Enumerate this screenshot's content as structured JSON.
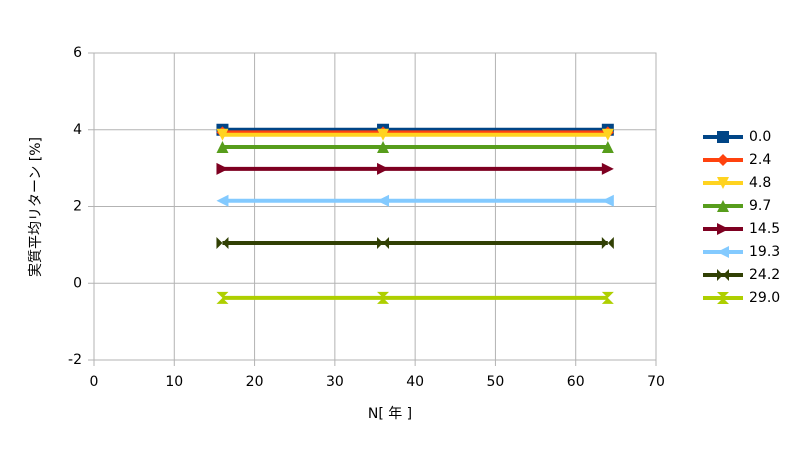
{
  "chart_data": {
    "type": "line",
    "x_label": "N[ 年 ]",
    "y_label": "実質平均リターン [%]",
    "x": [
      16,
      36,
      64
    ],
    "xlim": [
      0,
      70
    ],
    "xticks": [
      0,
      10,
      20,
      30,
      40,
      50,
      60,
      70
    ],
    "ylim": [
      -2,
      6
    ],
    "yticks": [
      -2,
      0,
      2,
      4,
      6
    ],
    "grid": true,
    "legend": "right",
    "series": [
      {
        "name": "0.0",
        "color": "#004586",
        "marker": "square",
        "values": [
          4.0,
          4.0,
          4.0
        ]
      },
      {
        "name": "2.4",
        "color": "#ff420e",
        "marker": "diamond",
        "values": [
          3.93,
          3.93,
          3.93
        ]
      },
      {
        "name": "4.8",
        "color": "#ffd320",
        "marker": "triangle-down",
        "values": [
          3.87,
          3.87,
          3.87
        ]
      },
      {
        "name": "9.7",
        "color": "#579d1c",
        "marker": "triangle-up",
        "values": [
          3.55,
          3.55,
          3.55
        ]
      },
      {
        "name": "14.5",
        "color": "#7e0021",
        "marker": "triangle-right",
        "values": [
          2.98,
          2.98,
          2.98
        ]
      },
      {
        "name": "19.3",
        "color": "#83caff",
        "marker": "triangle-left",
        "values": [
          2.15,
          2.15,
          2.15
        ]
      },
      {
        "name": "24.2",
        "color": "#314004",
        "marker": "bowtie",
        "values": [
          1.05,
          1.05,
          1.05
        ]
      },
      {
        "name": "29.0",
        "color": "#aecf00",
        "marker": "hourglass",
        "values": [
          -0.38,
          -0.38,
          -0.38
        ]
      }
    ]
  }
}
